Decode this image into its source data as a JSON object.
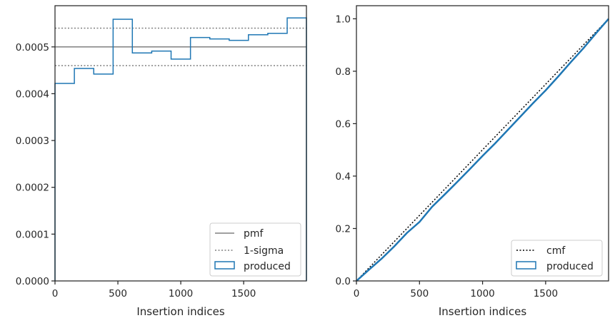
{
  "chart_data": [
    {
      "type": "step-histogram",
      "xlabel": "Insertion indices",
      "ylabel": "",
      "xlim": [
        0,
        1999
      ],
      "ylim": [
        0,
        0.000588
      ],
      "xticks": [
        0,
        500,
        1000,
        1500
      ],
      "yticks": [
        0,
        0.0001,
        0.0002,
        0.0003,
        0.0004,
        0.0005
      ],
      "ytick_labels": [
        "0.0000",
        "0.0001",
        "0.0002",
        "0.0003",
        "0.0004",
        "0.0005"
      ],
      "grid": false,
      "legend_position": "lower right",
      "hlines": [
        {
          "name": "pmf",
          "y": 0.0005,
          "style": "solid",
          "color": "#808080"
        },
        {
          "name": "1-sigma",
          "y": 0.00054,
          "style": "dotted",
          "color": "#808080"
        },
        {
          "name": "",
          "y": 0.00046,
          "style": "dotted",
          "color": "#808080"
        }
      ],
      "series": [
        {
          "name": "produced",
          "color": "#1f77b4",
          "bin_edges": [
            0,
            154,
            308,
            462,
            615,
            769,
            923,
            1077,
            1231,
            1385,
            1538,
            1692,
            1846,
            1999
          ],
          "values": [
            0.000422,
            0.000454,
            0.000442,
            0.000559,
            0.000487,
            0.000491,
            0.000474,
            0.00052,
            0.000517,
            0.000514,
            0.000526,
            0.000529,
            0.000562
          ]
        }
      ],
      "legend": [
        "pmf",
        "1-sigma",
        "produced"
      ]
    },
    {
      "type": "line",
      "xlabel": "Insertion indices",
      "ylabel": "",
      "xlim": [
        0,
        1999
      ],
      "ylim": [
        0,
        1.05
      ],
      "xticks": [
        0,
        500,
        1000,
        1500
      ],
      "yticks": [
        0,
        0.2,
        0.4,
        0.6,
        0.8,
        1.0
      ],
      "ytick_labels": [
        "0.0",
        "0.2",
        "0.4",
        "0.6",
        "0.8",
        "1.0"
      ],
      "grid": false,
      "legend_position": "lower right",
      "series": [
        {
          "name": "cmf",
          "style": "dotted",
          "color": "#000000",
          "x": [
            0,
            1999
          ],
          "y": [
            0,
            1.0
          ]
        },
        {
          "name": "produced",
          "style": "solid",
          "color": "#1f77b4",
          "x": [
            0,
            100,
            200,
            300,
            400,
            500,
            600,
            700,
            800,
            900,
            1000,
            1100,
            1200,
            1300,
            1400,
            1500,
            1600,
            1700,
            1800,
            1900,
            1999
          ],
          "y": [
            0,
            0.043,
            0.085,
            0.132,
            0.183,
            0.225,
            0.283,
            0.33,
            0.378,
            0.427,
            0.477,
            0.525,
            0.576,
            0.627,
            0.678,
            0.727,
            0.78,
            0.835,
            0.888,
            0.945,
            1.0
          ]
        }
      ],
      "legend": [
        "cmf",
        "produced"
      ]
    }
  ]
}
